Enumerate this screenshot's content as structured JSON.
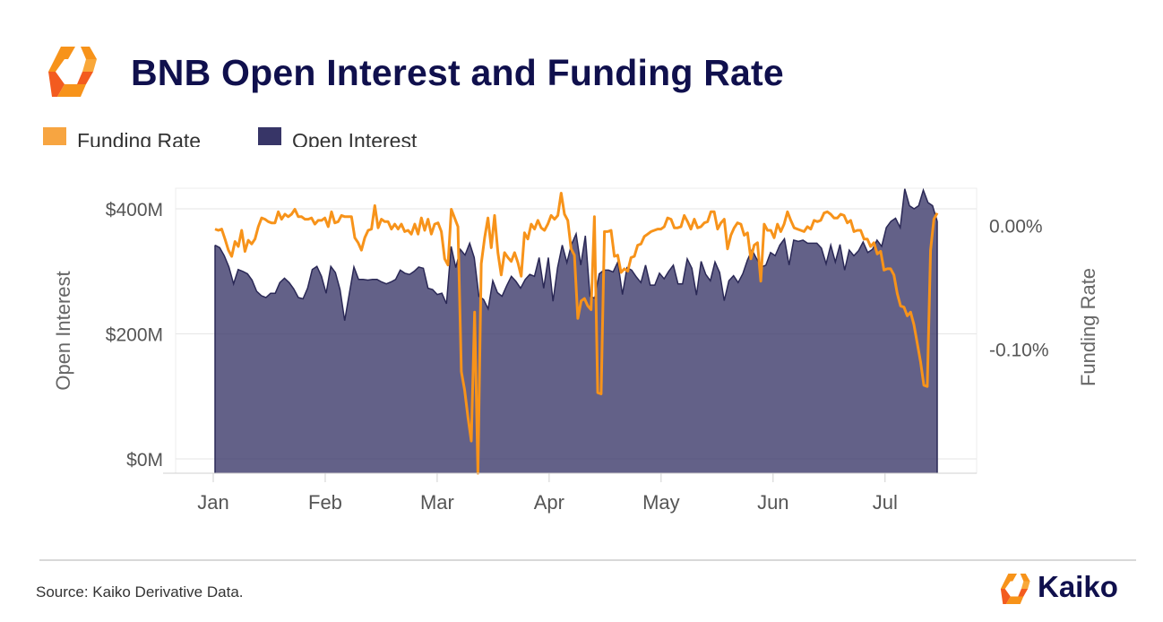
{
  "title": "BNB Open Interest and Funding Rate",
  "legend": [
    {
      "label": "Funding Rate",
      "color": "#f7a541"
    },
    {
      "label": "Open Interest",
      "color": "#373567"
    }
  ],
  "source": "Source: Kaiko Derivative Data.",
  "brand": {
    "name": "Kaiko",
    "logo_icon": "kaiko-logo-icon",
    "logo_colors": [
      "#f7931a",
      "#f35b1f"
    ]
  },
  "chart_data": {
    "type": "area",
    "title": "BNB Open Interest and Funding Rate",
    "x_axis": {
      "ticks": [
        "Jan",
        "Feb",
        "Mar",
        "Apr",
        "May",
        "Jun",
        "Jul"
      ],
      "range": [
        "Jan 1",
        "Jul 20"
      ]
    },
    "y_left": {
      "label": "Open Interest",
      "ticks": [
        "$400M",
        "$200M",
        "$0M"
      ],
      "tick_values_millions": [
        400,
        200,
        0
      ],
      "range_millions": [
        -23,
        433
      ]
    },
    "y_right": {
      "label": "Funding Rate",
      "ticks": [
        "0.00%",
        "-0.10%"
      ],
      "tick_values_percent": [
        0.0,
        -0.1
      ],
      "range_percent": [
        -0.2,
        0.03
      ]
    },
    "grid": true,
    "legend_position": "top-left",
    "series": [
      {
        "name": "Open Interest",
        "axis": "left",
        "type": "area",
        "color": "#373567",
        "fill_opacity": 0.78,
        "unit": "USD millions",
        "values": [
          342,
          338,
          325,
          307,
          280,
          303,
          300,
          296,
          286,
          268,
          261,
          258,
          265,
          265,
          282,
          289,
          282,
          272,
          258,
          256,
          273,
          303,
          308,
          292,
          265,
          308,
          298,
          271,
          221,
          264,
          307,
          287,
          287,
          286,
          287,
          287,
          283,
          280,
          283,
          287,
          302,
          297,
          295,
          300,
          307,
          305,
          273,
          271,
          263,
          265,
          248,
          340,
          306,
          335,
          326,
          345,
          322,
          260,
          255,
          240,
          285,
          266,
          260,
          277,
          292,
          284,
          273,
          287,
          295,
          292,
          322,
          273,
          322,
          252,
          306,
          342,
          314,
          343,
          360,
          310,
          357,
          260,
          257,
          296,
          302,
          302,
          299,
          315,
          263,
          306,
          302,
          291,
          282,
          310,
          278,
          278,
          297,
          288,
          300,
          310,
          280,
          280,
          320,
          305,
          262,
          316,
          295,
          285,
          315,
          298,
          253,
          285,
          293,
          282,
          296,
          318,
          334,
          320,
          307,
          310,
          330,
          325,
          342,
          352,
          310,
          350,
          348,
          350,
          345,
          345,
          345,
          337,
          312,
          342,
          315,
          343,
          302,
          334,
          325,
          333,
          347,
          330,
          335,
          350,
          340,
          370,
          380,
          385,
          370,
          432,
          405,
          400,
          405,
          430,
          410,
          405,
          380
        ]
      },
      {
        "name": "Funding Rate",
        "axis": "right",
        "type": "line",
        "color": "#f7931a",
        "unit": "percent",
        "values": [
          -0.003,
          -0.004,
          -0.003,
          -0.011,
          -0.02,
          -0.025,
          -0.013,
          -0.017,
          -0.004,
          -0.021,
          -0.012,
          -0.015,
          -0.011,
          -0.001,
          0.006,
          0.005,
          0.003,
          0.002,
          0.002,
          0.011,
          0.005,
          0.009,
          0.007,
          0.009,
          0.013,
          0.007,
          0.007,
          0.005,
          0.005,
          0.006,
          0.001,
          0.004,
          0.004,
          0.006,
          -0.001,
          0.011,
          0.002,
          0.003,
          0.008,
          0.007,
          0.007,
          0.007,
          -0.01,
          -0.014,
          -0.02,
          -0.01,
          -0.004,
          -0.003,
          0.016,
          -0.002,
          0.005,
          0.003,
          0.003,
          -0.003,
          0.001,
          -0.003,
          0.001,
          -0.005,
          -0.004,
          -0.007,
          0.001,
          -0.007,
          0.006,
          -0.004,
          0.005,
          -0.007,
          0.001,
          0.002,
          -0.005,
          -0.027,
          -0.032,
          0.013,
          0.006,
          -0.001,
          -0.118,
          -0.133,
          -0.155,
          -0.174,
          -0.07,
          -0.2,
          -0.031,
          -0.01,
          0.006,
          -0.018,
          0.008,
          -0.022,
          -0.04,
          -0.022,
          -0.026,
          -0.029,
          -0.022,
          -0.03,
          -0.041,
          -0.006,
          -0.011,
          0.001,
          -0.003,
          0.004,
          -0.002,
          -0.004,
          0.001,
          0.008,
          0.005,
          0.008,
          0.026,
          0.009,
          0.004,
          -0.019,
          -0.024,
          -0.075,
          -0.061,
          -0.059,
          -0.065,
          -0.068,
          0.007,
          -0.135,
          -0.136,
          -0.005,
          -0.005,
          -0.004,
          -0.025,
          -0.024,
          -0.038,
          -0.035,
          -0.037,
          -0.026,
          -0.025,
          -0.016,
          -0.015,
          -0.009,
          -0.007,
          -0.005,
          -0.004,
          -0.003,
          -0.003,
          -0.001,
          0.006,
          0.005,
          -0.002,
          -0.002,
          -0.001,
          0.008,
          0.003,
          -0.003,
          0.005,
          -0.002,
          -0.001,
          0.002,
          0.003,
          0.011,
          0.011,
          -0.003,
          0.002,
          0.005,
          -0.019,
          -0.008,
          -0.002,
          0.002,
          0.001,
          -0.008,
          -0.006,
          -0.027,
          -0.016,
          -0.014,
          -0.045,
          0.001,
          -0.004,
          -0.004,
          -0.01,
          0.001,
          -0.005,
          0.001,
          0.011,
          0.004,
          -0.002,
          -0.003,
          -0.004,
          -0.005,
          -0.001,
          -0.003,
          0.004,
          0.003,
          0.004,
          0.01,
          0.011,
          0.009,
          0.006,
          0.006,
          0.009,
          0.008,
          0.002,
          0.004,
          -0.005,
          -0.004,
          -0.004,
          -0.011,
          -0.011,
          -0.017,
          -0.014,
          -0.023,
          -0.021,
          -0.036,
          -0.035,
          -0.035,
          -0.04,
          -0.055,
          -0.065,
          -0.066,
          -0.073,
          -0.07,
          -0.08,
          -0.095,
          -0.11,
          -0.129,
          -0.13,
          -0.02,
          0.005,
          0.01
        ]
      }
    ]
  }
}
